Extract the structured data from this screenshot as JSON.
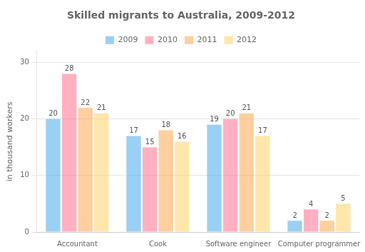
{
  "chart_data": {
    "type": "bar",
    "title": "Skilled migrants to Australia, 2009-2012",
    "ylabel": "in thousand workers",
    "categories": [
      "Accountant",
      "Cook",
      "Software engineer",
      "Computer programmer"
    ],
    "series": [
      {
        "name": "2009",
        "values": [
          20,
          17,
          19,
          2
        ]
      },
      {
        "name": "2010",
        "values": [
          28,
          15,
          20,
          4
        ]
      },
      {
        "name": "2011",
        "values": [
          22,
          18,
          21,
          2
        ]
      },
      {
        "name": "2012",
        "values": [
          21,
          16,
          17,
          5
        ]
      }
    ],
    "ylim": [
      0,
      32
    ],
    "yticks": [
      0,
      10,
      20,
      30
    ],
    "grid": true,
    "legend": "top",
    "data_labels": true
  }
}
